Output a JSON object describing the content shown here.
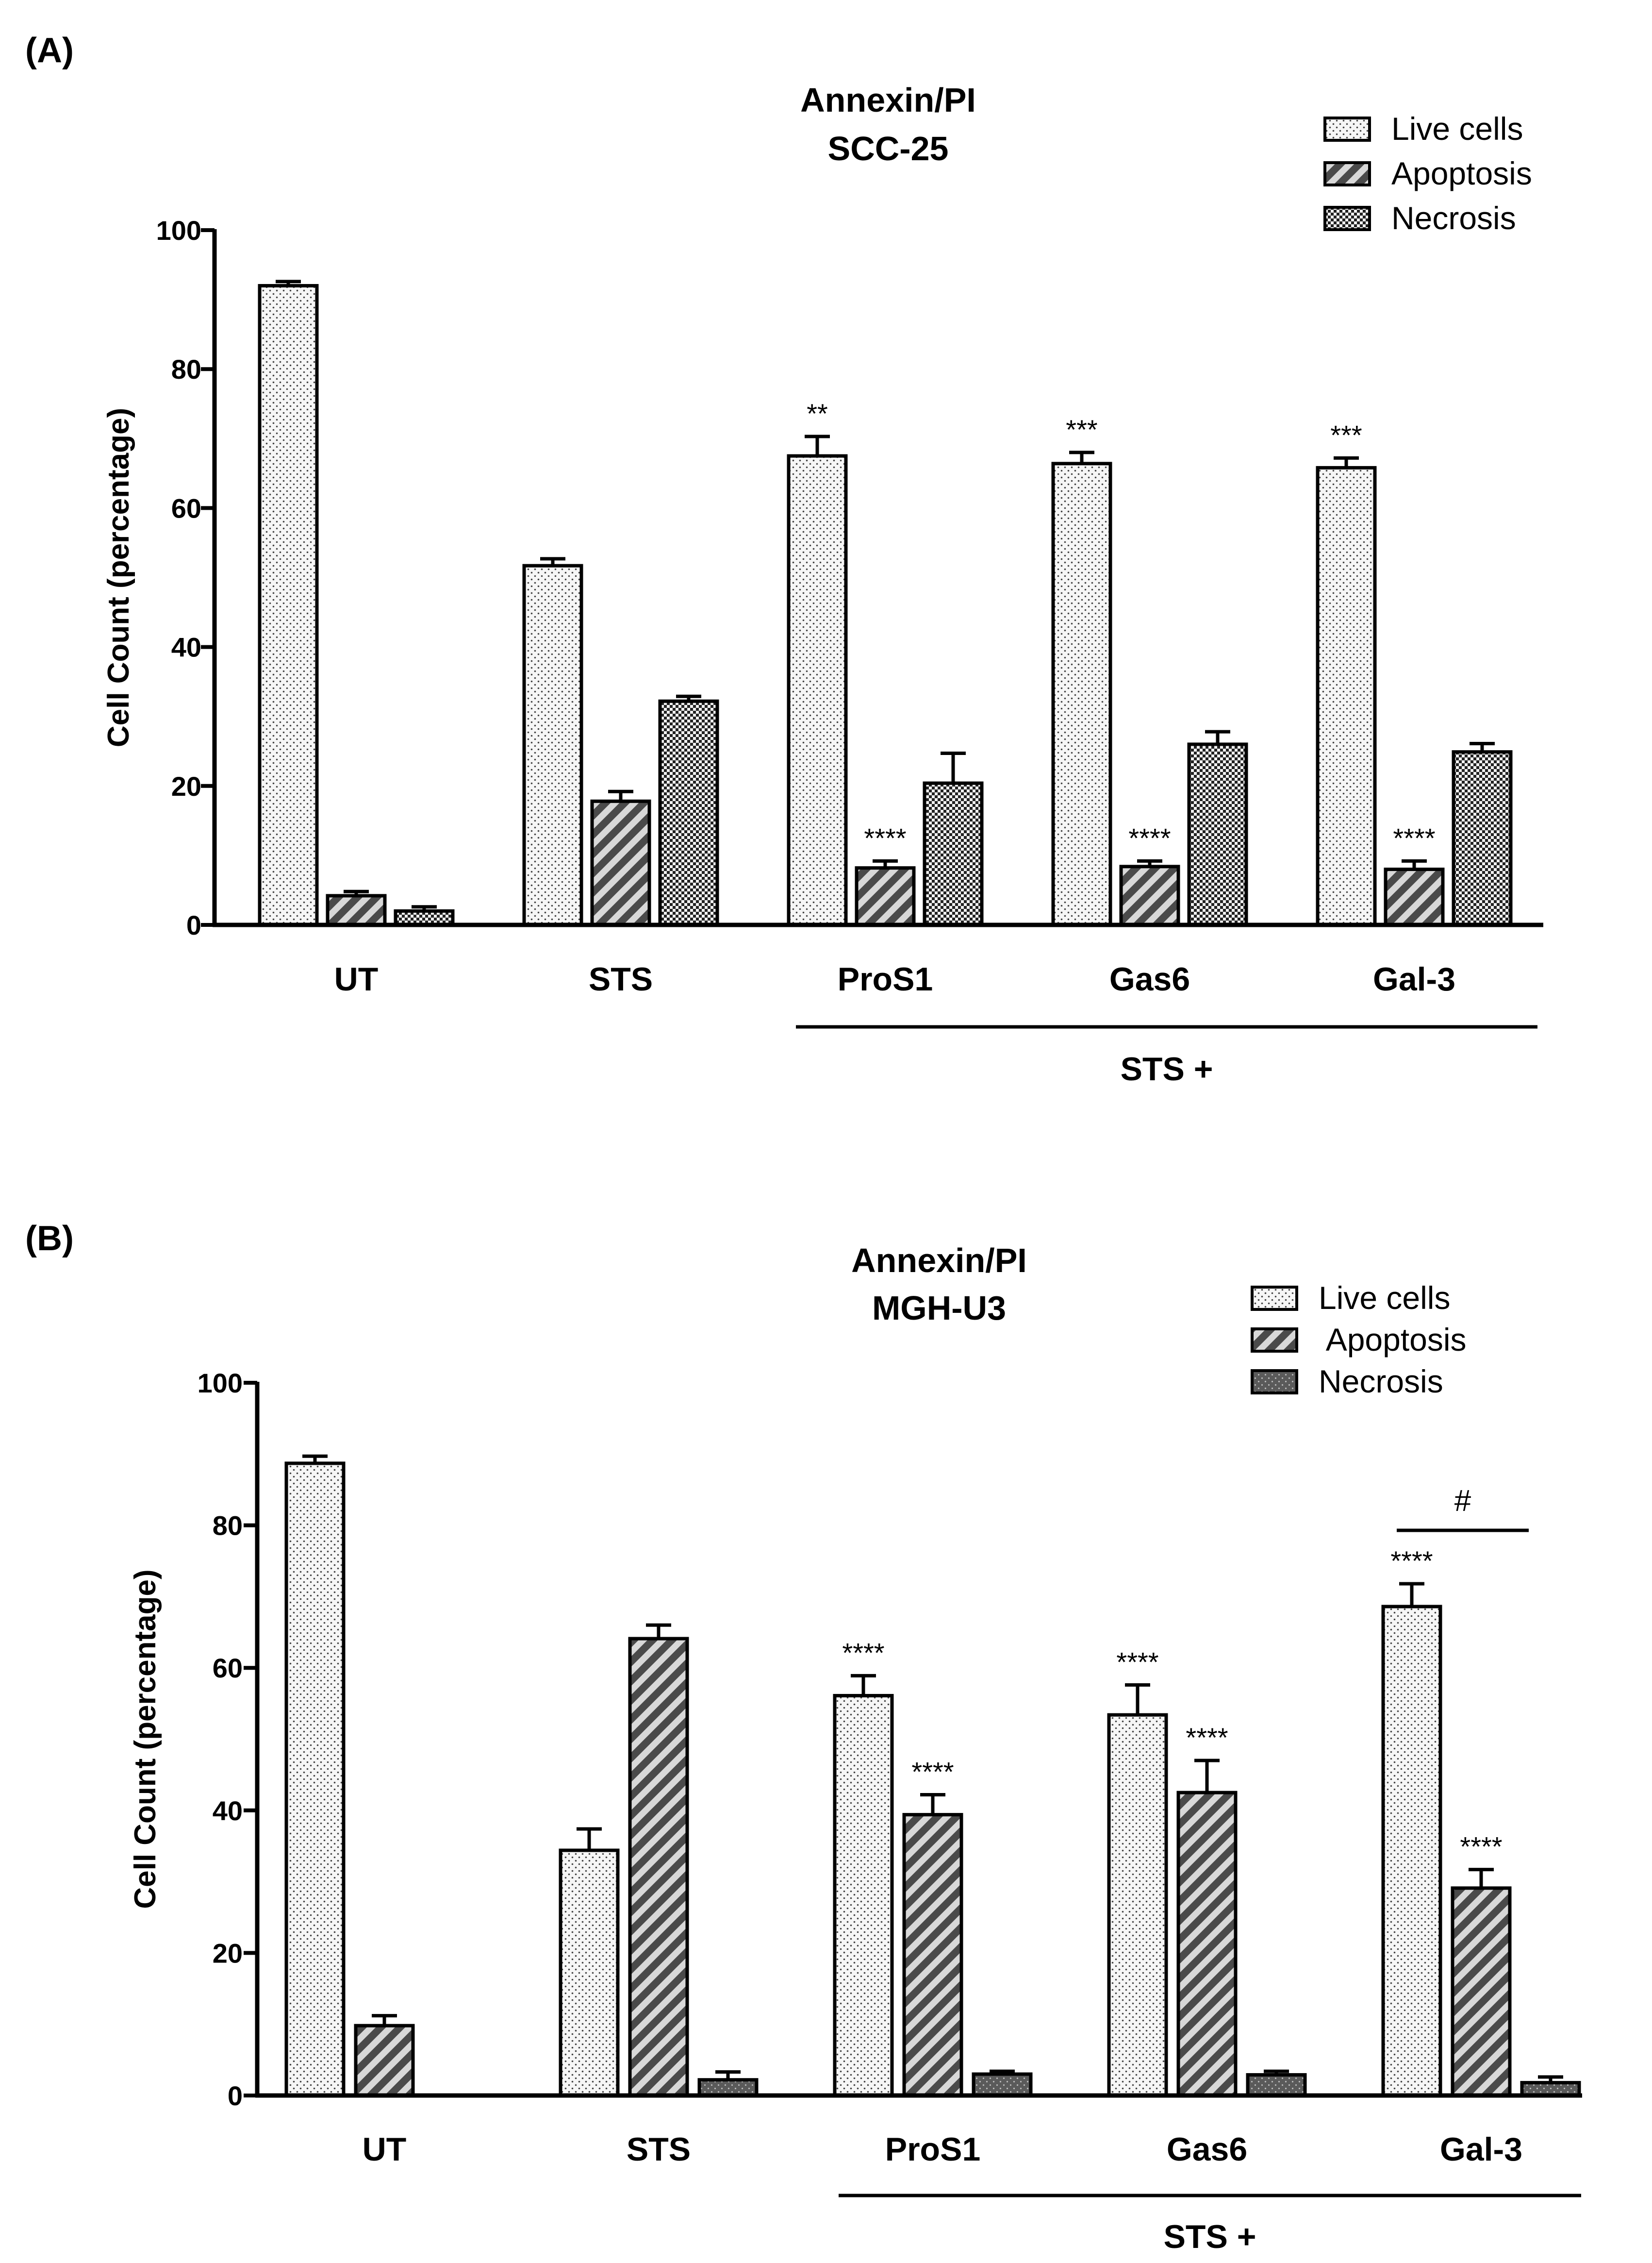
{
  "colors": {
    "ink": "#000000",
    "live_fill": "#f4f4f4",
    "apoptosis_fill": "#707070",
    "necrosis_fill": "#555555",
    "background": "#ffffff"
  },
  "chart_data": [
    {
      "panel_label": "(A)",
      "type": "bar",
      "title": "Annexin/PI",
      "subtitle": "SCC-25",
      "xlabel": "",
      "ylabel": "Cell Count (percentage)",
      "ylim": [
        0,
        100
      ],
      "yticks": [
        0,
        20,
        40,
        60,
        80,
        100
      ],
      "categories": [
        "UT",
        "STS",
        "ProS1",
        "Gas6",
        "Gal-3"
      ],
      "group_bracket": {
        "label": "STS +",
        "from": "ProS1",
        "to": "Gal-3"
      },
      "legend": {
        "position": "top-right",
        "entries": [
          "Live cells",
          "Apoptosis",
          "Necrosis"
        ]
      },
      "series": [
        {
          "name": "Live cells",
          "pattern": "dots",
          "values": [
            92,
            51.7,
            67.5,
            66.4,
            65.8
          ],
          "errors": [
            0.6,
            1.0,
            2.8,
            1.6,
            1.4
          ],
          "annotations": [
            "",
            "",
            "**",
            "***",
            "***"
          ]
        },
        {
          "name": "Apoptosis",
          "pattern": "diagonal-stripes",
          "values": [
            4.2,
            17.8,
            8.2,
            8.4,
            8.0
          ],
          "errors": [
            0.6,
            1.4,
            1.0,
            0.8,
            1.2
          ],
          "annotations": [
            "",
            "",
            "****",
            "****",
            "****"
          ]
        },
        {
          "name": "Necrosis",
          "pattern": "checker",
          "values": [
            2.0,
            32.2,
            20.4,
            26.0,
            24.9
          ],
          "errors": [
            0.6,
            0.7,
            4.3,
            1.8,
            1.2
          ],
          "annotations": [
            "",
            "",
            "",
            "",
            ""
          ]
        }
      ]
    },
    {
      "panel_label": "(B)",
      "type": "bar",
      "title": "Annexin/PI",
      "subtitle": "MGH-U3",
      "xlabel": "",
      "ylabel": "Cell Count (percentage)",
      "ylim": [
        0,
        100
      ],
      "yticks": [
        0,
        20,
        40,
        60,
        80,
        100
      ],
      "categories": [
        "UT",
        "STS",
        "ProS1",
        "Gas6",
        "Gal-3"
      ],
      "group_bracket": {
        "label": "STS +",
        "from": "ProS1",
        "to": "Gal-3"
      },
      "extra_annotation": {
        "label": "#",
        "category": "Gal-3"
      },
      "legend": {
        "position": "top-right",
        "entries": [
          "Live cells",
          " Apoptosis",
          "Necrosis"
        ]
      },
      "series": [
        {
          "name": "Live cells",
          "pattern": "dots",
          "values": [
            88.7,
            34.4,
            56.1,
            53.4,
            68.6
          ],
          "errors": [
            1.0,
            3.0,
            2.8,
            4.2,
            3.2
          ],
          "annotations": [
            "",
            "",
            "****",
            "****",
            "****"
          ]
        },
        {
          "name": "Apoptosis",
          "pattern": "diagonal-stripes",
          "values": [
            9.8,
            64.1,
            39.4,
            42.5,
            29.1
          ],
          "errors": [
            1.4,
            1.9,
            2.8,
            4.5,
            2.6
          ],
          "annotations": [
            "",
            "",
            "****",
            "****",
            "****"
          ]
        },
        {
          "name": "Necrosis",
          "pattern": "dark-dots",
          "values": [
            0,
            2.2,
            3.0,
            2.9,
            1.8
          ],
          "errors": [
            0,
            1.1,
            0.4,
            0.5,
            0.8
          ],
          "annotations": [
            "",
            "",
            "",
            "",
            ""
          ]
        }
      ]
    }
  ]
}
